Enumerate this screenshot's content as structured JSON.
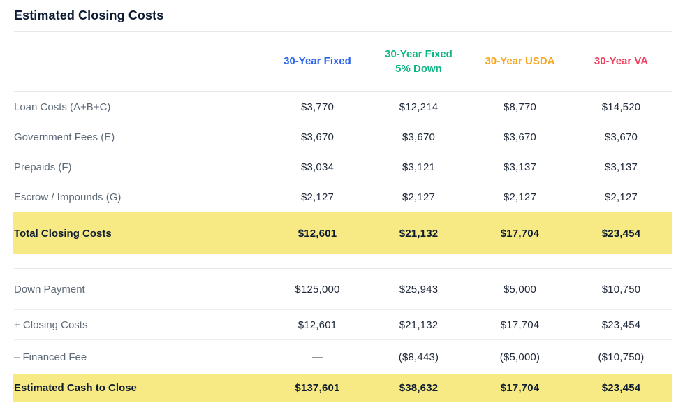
{
  "page": {
    "title": "Estimated Closing Costs"
  },
  "colors": {
    "highlight_yellow": "#f7ea85",
    "col_fixed_blue": "#2b63ee",
    "col_fixed5_green": "#10b583",
    "col_usda_orange": "#f6a722",
    "col_va_red": "#ef4565"
  },
  "table": {
    "columns": [
      {
        "label": "30-Year Fixed",
        "label2": "",
        "color": "#2b63ee"
      },
      {
        "label": "30-Year Fixed",
        "label2": "5% Down",
        "color": "#10b583"
      },
      {
        "label": "30-Year USDA",
        "label2": "",
        "color": "#f6a722"
      },
      {
        "label": "30-Year VA",
        "label2": "",
        "color": "#ef4565"
      }
    ],
    "sections": [
      {
        "rows": [
          {
            "label": "Loan Costs (A+B+C)",
            "values": [
              "$3,770",
              "$12,214",
              "$8,770",
              "$14,520"
            ]
          },
          {
            "label": "Government Fees (E)",
            "values": [
              "$3,670",
              "$3,670",
              "$3,670",
              "$3,670"
            ]
          },
          {
            "label": "Prepaids (F)",
            "values": [
              "$3,034",
              "$3,121",
              "$3,137",
              "$3,137"
            ]
          },
          {
            "label": "Escrow / Impounds (G)",
            "values": [
              "$2,127",
              "$2,127",
              "$2,127",
              "$2,127"
            ]
          }
        ],
        "total": {
          "label": "Total Closing Costs",
          "values": [
            "$12,601",
            "$21,132",
            "$17,704",
            "$23,454"
          ]
        }
      },
      {
        "rows": [
          {
            "label": "Down Payment",
            "values": [
              "$125,000",
              "$25,943",
              "$5,000",
              "$10,750"
            ]
          },
          {
            "label": "+ Closing Costs",
            "values": [
              "$12,601",
              "$21,132",
              "$17,704",
              "$23,454"
            ]
          },
          {
            "label": "– Financed Fee",
            "values": [
              "—",
              "($8,443)",
              "($5,000)",
              "($10,750)"
            ]
          }
        ],
        "total": {
          "label": "Estimated Cash to Close",
          "values": [
            "$137,601",
            "$38,632",
            "$17,704",
            "$23,454"
          ]
        }
      }
    ]
  }
}
